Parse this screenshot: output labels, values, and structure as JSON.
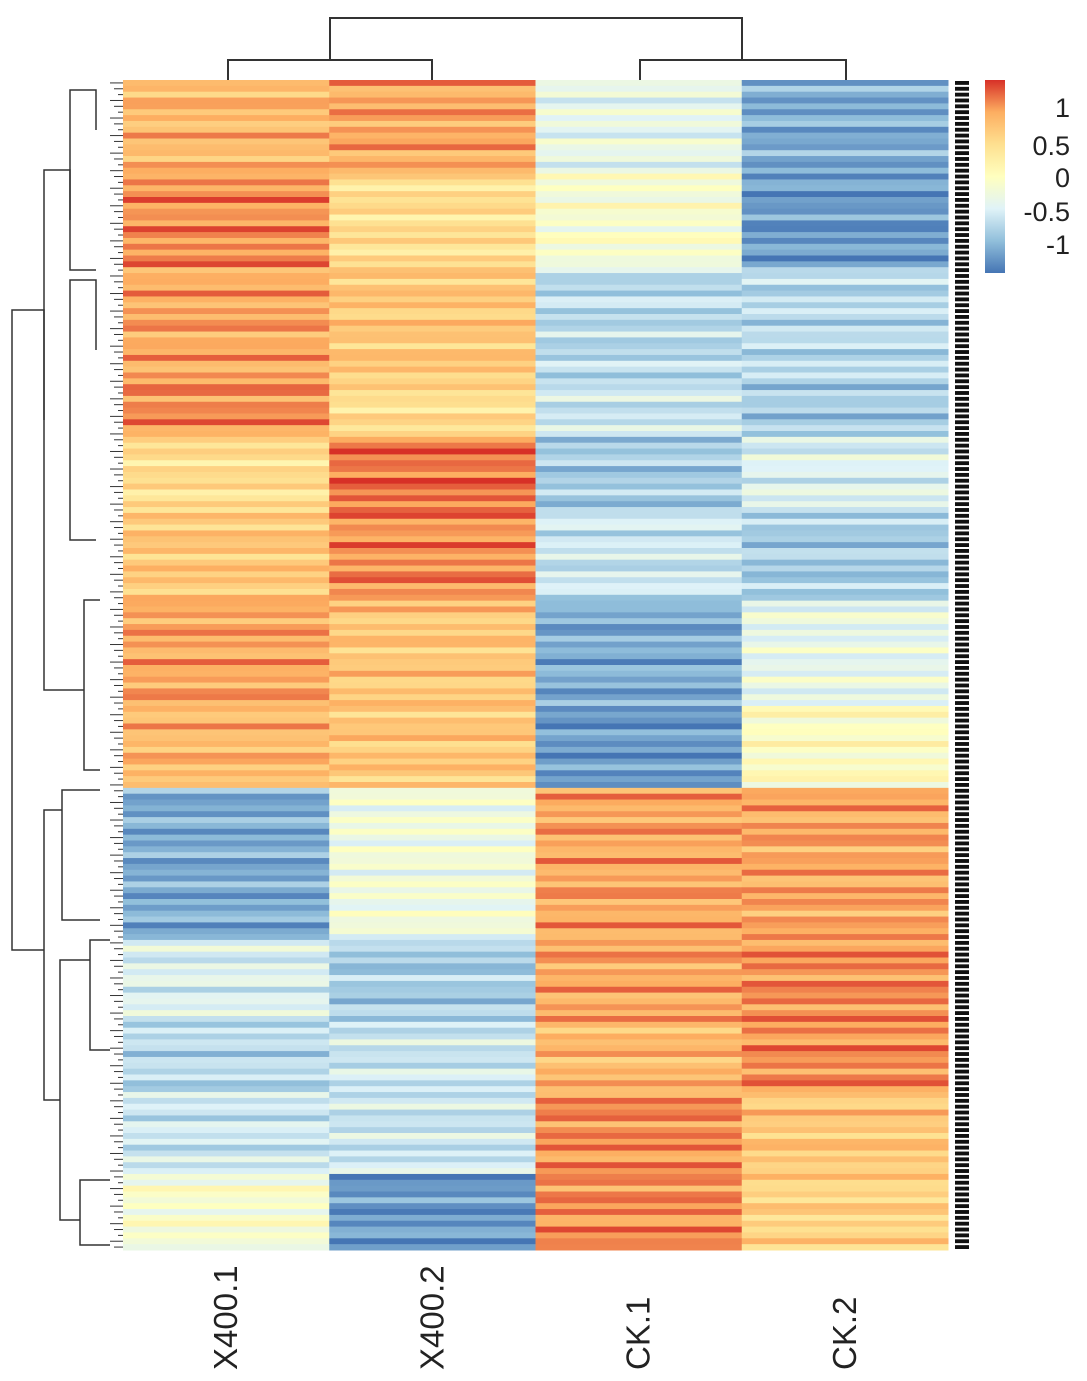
{
  "chart_data": {
    "type": "heatmap",
    "title": "",
    "columns": [
      "X400.1",
      "X400.2",
      "CK.1",
      "CK.2"
    ],
    "row_blocks": [
      {
        "rows": 16,
        "values": [
          0.7,
          0.8,
          -0.3,
          -0.9
        ]
      },
      {
        "rows": 16,
        "values": [
          0.9,
          0.4,
          -0.1,
          -1.0
        ]
      },
      {
        "rows": 20,
        "values": [
          0.8,
          0.6,
          -0.6,
          -0.6
        ]
      },
      {
        "rows": 9,
        "values": [
          0.9,
          0.4,
          -0.5,
          -0.7
        ]
      },
      {
        "rows": 13,
        "values": [
          0.4,
          1.0,
          -0.7,
          -0.4
        ]
      },
      {
        "rows": 15,
        "values": [
          0.6,
          0.9,
          -0.5,
          -0.7
        ]
      },
      {
        "rows": 18,
        "values": [
          0.8,
          0.6,
          -0.9,
          -0.3
        ]
      },
      {
        "rows": 14,
        "values": [
          0.7,
          0.6,
          -1.0,
          0.0
        ]
      },
      {
        "rows": 26,
        "values": [
          -0.9,
          -0.2,
          0.8,
          0.8
        ]
      },
      {
        "rows": 14,
        "values": [
          -0.4,
          -0.7,
          0.8,
          0.9
        ]
      },
      {
        "rows": 12,
        "values": [
          -0.6,
          -0.5,
          0.7,
          0.9
        ]
      },
      {
        "rows": 14,
        "values": [
          -0.5,
          -0.5,
          0.9,
          0.6
        ]
      },
      {
        "rows": 13,
        "values": [
          -0.1,
          -1.0,
          0.9,
          0.5
        ]
      }
    ],
    "color_scale": {
      "range": [
        -1.2,
        1.2
      ],
      "colors": [
        "#4575b4",
        "#91bfdb",
        "#e0f3f8",
        "#ffffbf",
        "#fee090",
        "#fdae61",
        "#d73027"
      ],
      "ticks": [
        "1",
        "0.5",
        "0",
        "-0.5",
        "-1"
      ]
    },
    "column_dendrogram": true,
    "row_dendrogram": true
  }
}
